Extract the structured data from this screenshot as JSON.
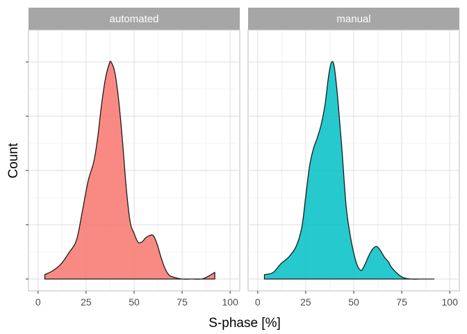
{
  "chart_data": {
    "type": "area",
    "xlabel": "S-phase [%]",
    "ylabel": "Count",
    "xlim": [
      -5,
      105
    ],
    "x_ticks": [
      0,
      25,
      50,
      75,
      100
    ],
    "y_tick_labels_shown": false,
    "grid": true,
    "panels": [
      {
        "name": "automated",
        "color": "#F8766D",
        "x": [
          3.5,
          8,
          12,
          16,
          20,
          23,
          26,
          29,
          31,
          33,
          35,
          37,
          38,
          40,
          42,
          44,
          46,
          48,
          50,
          52,
          54,
          56,
          58,
          60,
          62,
          64,
          66,
          68,
          70,
          75,
          80,
          85,
          88,
          90,
          92
        ],
        "values": [
          0.02,
          0.04,
          0.07,
          0.12,
          0.18,
          0.31,
          0.45,
          0.54,
          0.65,
          0.8,
          0.92,
          0.99,
          1.0,
          0.95,
          0.82,
          0.63,
          0.41,
          0.26,
          0.21,
          0.17,
          0.17,
          0.19,
          0.2,
          0.2,
          0.16,
          0.1,
          0.05,
          0.02,
          0.01,
          0.0,
          0.0,
          0.0,
          0.01,
          0.02,
          0.03
        ]
      },
      {
        "name": "manual",
        "color": "#00BFC4",
        "x": [
          3.5,
          8,
          12,
          16,
          20,
          23,
          25,
          27,
          29,
          31,
          33,
          35,
          37,
          38.5,
          40,
          42,
          44,
          46,
          48,
          50,
          52,
          54,
          56,
          58,
          60,
          62,
          64,
          66,
          68,
          70,
          75,
          80,
          85,
          92
        ],
        "values": [
          0.02,
          0.03,
          0.07,
          0.1,
          0.15,
          0.24,
          0.38,
          0.52,
          0.6,
          0.65,
          0.71,
          0.8,
          0.94,
          1.0,
          0.97,
          0.8,
          0.58,
          0.34,
          0.21,
          0.12,
          0.06,
          0.04,
          0.07,
          0.11,
          0.14,
          0.15,
          0.13,
          0.1,
          0.08,
          0.05,
          0.01,
          0.0,
          0.0,
          0.0
        ]
      }
    ]
  }
}
